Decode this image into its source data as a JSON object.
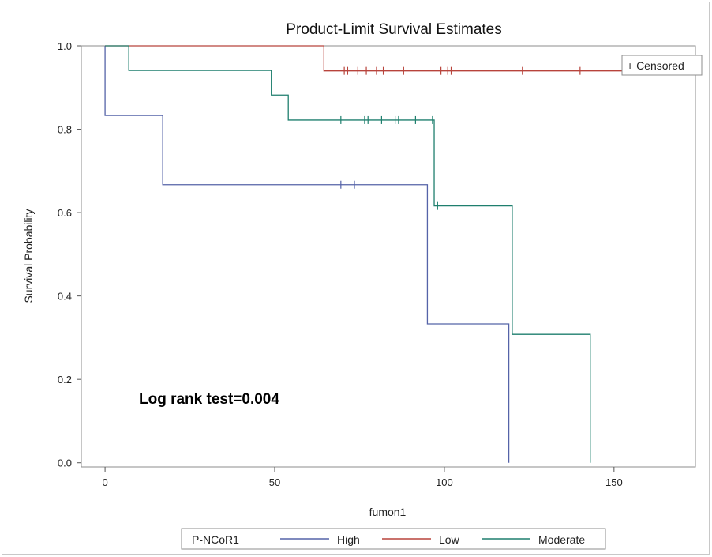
{
  "chart_data": {
    "type": "line",
    "subtype": "kaplan-meier-step",
    "title": "Product-Limit Survival Estimates",
    "xlabel": "fumon1",
    "ylabel": "Survival Probability",
    "xlim": [
      -7,
      174
    ],
    "ylim": [
      -0.01,
      1.0
    ],
    "x_ticks": [
      0,
      50,
      100,
      150
    ],
    "y_ticks": [
      0.0,
      0.2,
      0.4,
      0.6,
      0.8,
      1.0
    ],
    "y_tick_labels": [
      "0.0",
      "0.2",
      "0.4",
      "0.6",
      "0.8",
      "1.0"
    ],
    "grid": false,
    "annotation": "Log rank test=0.004",
    "censor_legend": "+ Censored",
    "legend": {
      "title": "P-NCoR1",
      "placement": "bottom"
    },
    "series": [
      {
        "name": "High",
        "color": "#5563a8",
        "steps": [
          [
            0,
            1.0
          ],
          [
            0,
            0.833
          ],
          [
            17,
            0.667
          ],
          [
            95,
            0.333
          ],
          [
            119,
            0.0
          ]
        ],
        "end_x": 119,
        "censored": [
          [
            69.5,
            0.667
          ],
          [
            73.5,
            0.667
          ]
        ]
      },
      {
        "name": "Low",
        "color": "#b8443c",
        "steps": [
          [
            0,
            1.0
          ],
          [
            64.5,
            0.94
          ]
        ],
        "end_x": 173,
        "censored": [
          [
            70.5,
            0.94
          ],
          [
            71.5,
            0.94
          ],
          [
            74.5,
            0.94
          ],
          [
            77,
            0.94
          ],
          [
            80,
            0.94
          ],
          [
            82,
            0.94
          ],
          [
            88,
            0.94
          ],
          [
            99,
            0.94
          ],
          [
            101,
            0.94
          ],
          [
            102,
            0.94
          ],
          [
            123,
            0.94
          ],
          [
            140,
            0.94
          ],
          [
            173,
            0.94
          ]
        ]
      },
      {
        "name": "Moderate",
        "color": "#1f7f6e",
        "steps": [
          [
            0,
            1.0
          ],
          [
            7,
            0.941
          ],
          [
            49,
            0.882
          ],
          [
            54,
            0.822
          ],
          [
            97,
            0.616
          ],
          [
            120,
            0.308
          ],
          [
            143,
            0.0
          ]
        ],
        "end_x": 143,
        "censored": [
          [
            69.5,
            0.822
          ],
          [
            76.5,
            0.822
          ],
          [
            77.5,
            0.822
          ],
          [
            81.5,
            0.822
          ],
          [
            85.5,
            0.822
          ],
          [
            86.5,
            0.822
          ],
          [
            91.5,
            0.822
          ],
          [
            96.5,
            0.822
          ],
          [
            98,
            0.616
          ]
        ]
      }
    ]
  }
}
